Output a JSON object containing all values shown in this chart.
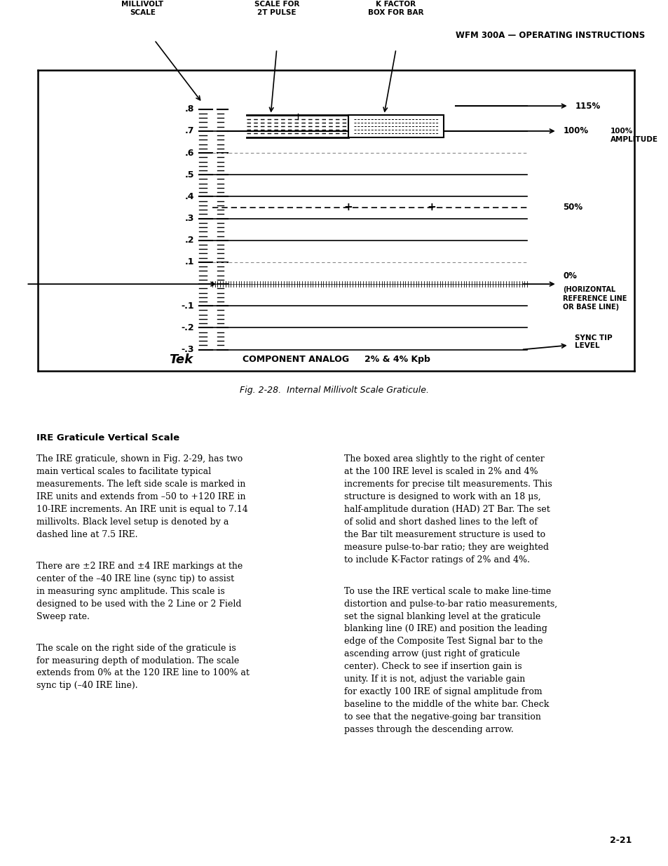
{
  "page_header": "WFM 300A — OPERATING INSTRUCTIONS",
  "fig_caption": "Fig. 2-28.  Internal Millivolt Scale Graticule.",
  "page_number": "2-21",
  "body_left1": "The IRE graticule, shown in Fig. 2-29, has two main vertical scales to facilitate typical measurements. The left side scale is marked in IRE units and extends from –50 to +120 IRE in 10-IRE increments. An IRE unit is equal to 7.14 millivolts.  Black level setup is denoted by a dashed line at 7.5 IRE.",
  "body_left2": "There are ±2 IRE and ±4 IRE markings at the center of the –40 IRE line (sync tip) to assist in measuring sync amplitude.  This scale is designed to be used with the 2 Line or 2 Field Sweep rate.",
  "body_left3": "The scale on the right side of the graticule is for measuring depth of modulation.  The scale extends from 0% at the 120 IRE line to 100% at sync tip (–40 IRE line).",
  "body_right1": "The boxed area slightly to the right of center at the 100 IRE level is scaled in 2% and 4% increments for precise tilt measurements.  This structure is designed to work with an 18 μs, half-amplitude duration (HAD) 2T Bar.  The set of solid and short dashed lines to the left of the Bar tilt measurement structure is used to measure pulse-to-bar ratio; they are weighted to include K-Factor ratings of 2% and 4%.",
  "body_right2": "To use the IRE vertical scale to make line-time distortion and pulse-to-bar ratio measurements, set the signal blanking level at the graticule blanking line (0 IRE) and position the leading edge of the Composite Test Signal bar to the ascending arrow (just right of graticule center).  Check to see if insertion gain is unity. If it is not, adjust the variable gain for exactly 100 IRE of signal amplitude from baseline to the middle of the white bar.  Check to see that the negative-going bar transition passes through the descending arrow."
}
